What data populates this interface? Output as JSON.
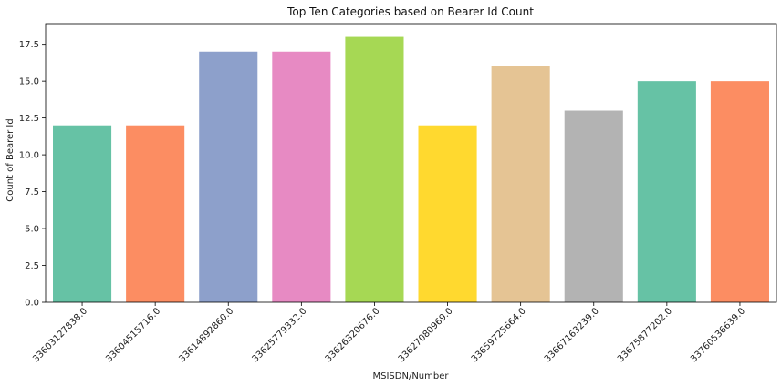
{
  "chart_data": {
    "type": "bar",
    "title": "Top Ten Categories based on Bearer Id Count",
    "xlabel": "MSISDN/Number",
    "ylabel": "Count of Bearer Id",
    "categories": [
      "33603127838.0",
      "33604515716.0",
      "33614892860.0",
      "33625779332.0",
      "33626320676.0",
      "33627080969.0",
      "33659725664.0",
      "33667163239.0",
      "33675877202.0",
      "33760536639.0"
    ],
    "values": [
      12,
      12,
      17,
      17,
      18,
      12,
      16,
      13,
      15,
      15
    ],
    "colors": [
      "#66c2a5",
      "#fc8d62",
      "#8da0cb",
      "#e78ac3",
      "#a6d854",
      "#ffd92f",
      "#e5c494",
      "#b3b3b3",
      "#66c2a5",
      "#fc8d62"
    ],
    "ylim": [
      0,
      18.9
    ],
    "yticks": [
      "0.0",
      "2.5",
      "5.0",
      "7.5",
      "10.0",
      "12.5",
      "15.0",
      "17.5"
    ],
    "grid": false,
    "legend": "none"
  }
}
